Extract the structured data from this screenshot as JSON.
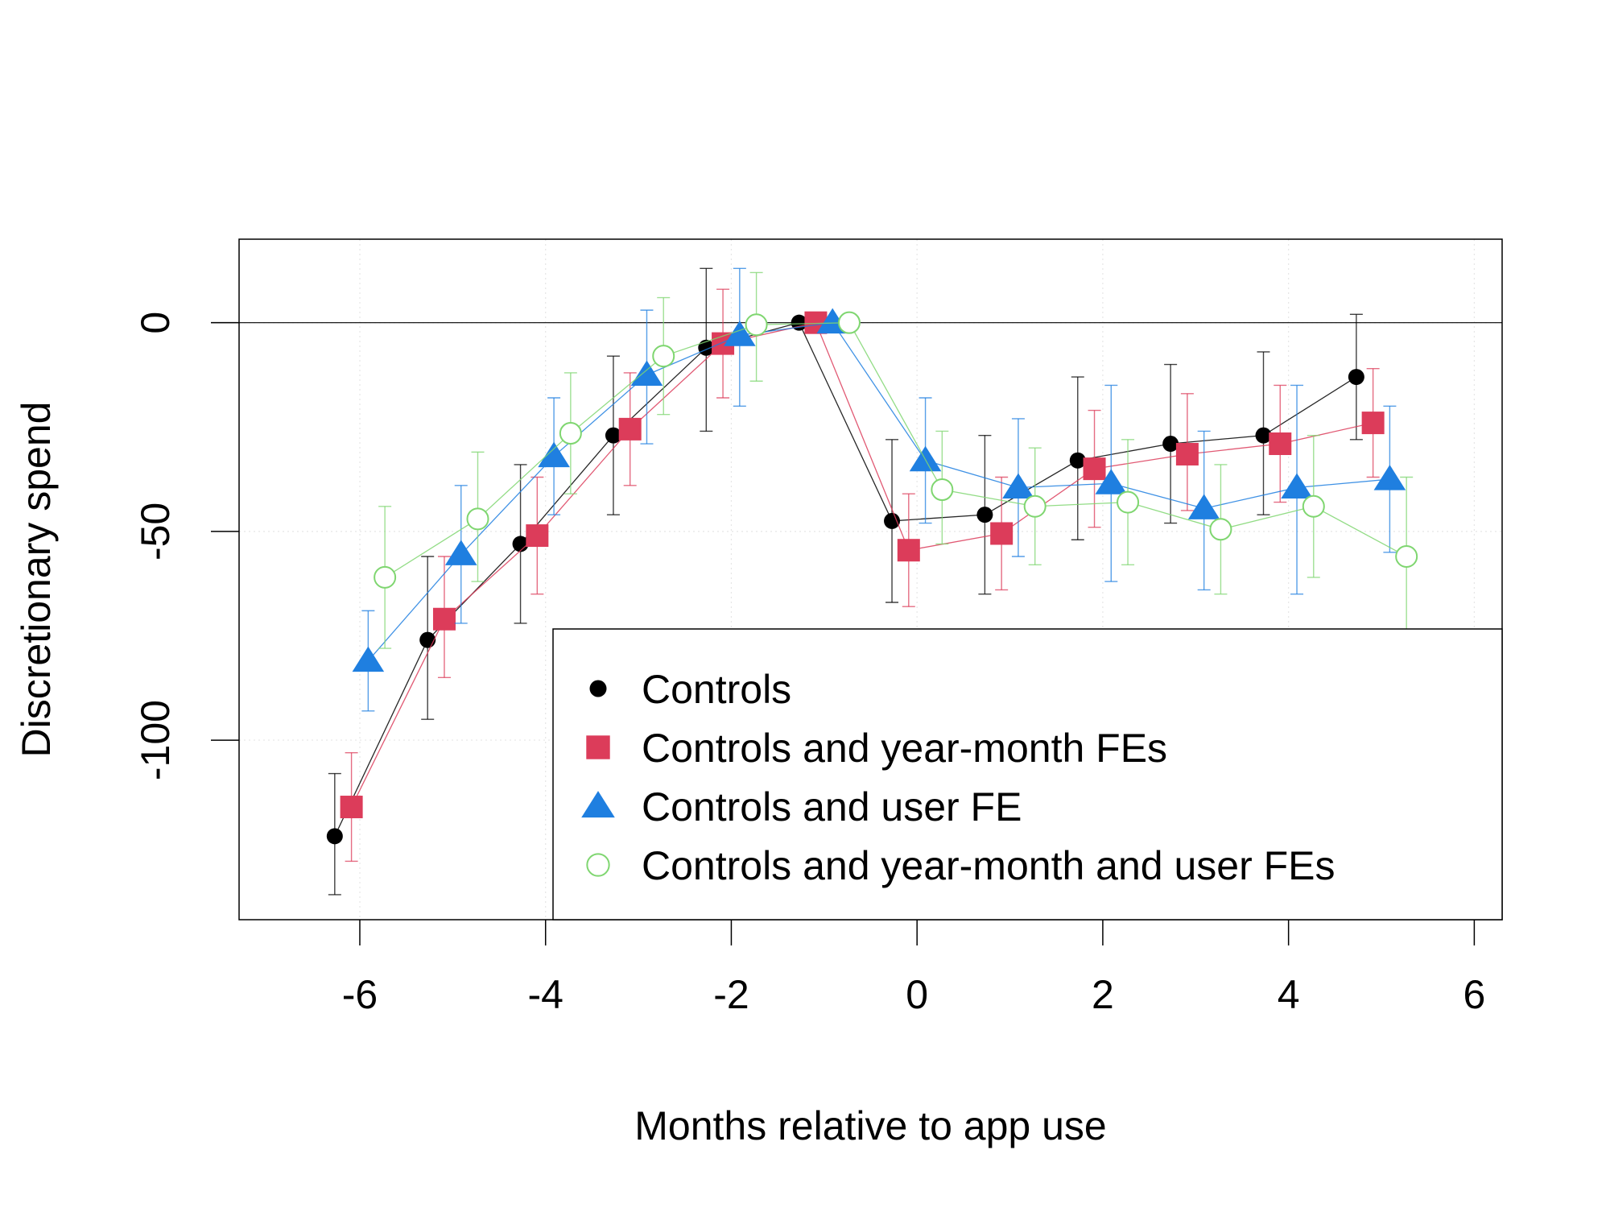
{
  "chart_data": {
    "type": "line",
    "title": "",
    "xlabel": "Months relative to app use",
    "ylabel": "Discretionary spend",
    "xlim": [
      -7.3,
      6.3
    ],
    "ylim": [
      -143,
      20
    ],
    "xticks": [
      -6,
      -4,
      -2,
      0,
      2,
      4,
      6
    ],
    "yticks": [
      0,
      -50,
      -100
    ],
    "xtick_labels": [
      "-6",
      "-4",
      "-2",
      "0",
      "2",
      "4",
      "6"
    ],
    "ytick_labels": [
      "0",
      "-50",
      "-100"
    ],
    "grid": true,
    "reference_line_y": 0,
    "legend_position": "bottom-right",
    "series": [
      {
        "name": "Controls",
        "color": "#000000",
        "marker": "filled-circle",
        "x": [
          -6.27,
          -5.27,
          -4.27,
          -3.27,
          -2.27,
          -1.27,
          -0.27,
          0.73,
          1.73,
          2.73,
          3.73,
          4.73
        ],
        "y": [
          -123,
          -76,
          -53,
          -27,
          -6,
          0,
          -47.5,
          -46,
          -33,
          -29,
          -27,
          -13
        ],
        "lower": [
          -137,
          -95,
          -72,
          -46,
          -26,
          0,
          -67,
          -65,
          -52,
          -48,
          -46,
          -28
        ],
        "upper": [
          -108,
          -56,
          -34,
          -8,
          13,
          0,
          -28,
          -27,
          -13,
          -10,
          -7,
          2
        ]
      },
      {
        "name": "Controls and year-month FEs",
        "color": "#dc3c5a",
        "marker": "filled-square",
        "x": [
          -6.09,
          -5.09,
          -4.09,
          -3.09,
          -2.09,
          -1.09,
          -0.09,
          0.91,
          1.91,
          2.91,
          3.91,
          4.91
        ],
        "y": [
          -116,
          -71,
          -51,
          -25.5,
          -5,
          0,
          -54.5,
          -50.5,
          -35,
          -31.5,
          -29,
          -24
        ],
        "lower": [
          -129,
          -85,
          -65,
          -39,
          -18,
          0,
          -68,
          -64,
          -49,
          -45,
          -43,
          -37
        ],
        "upper": [
          -103,
          -56,
          -37,
          -12,
          8,
          0,
          -41,
          -37,
          -21,
          -17,
          -15,
          -11
        ]
      },
      {
        "name": "Controls and user FE",
        "color": "#1f7fe0",
        "marker": "filled-triangle",
        "x": [
          -5.91,
          -4.91,
          -3.91,
          -2.91,
          -1.91,
          -0.91,
          0.09,
          1.09,
          2.09,
          3.09,
          4.09,
          5.09
        ],
        "y": [
          -81,
          -55.5,
          -32,
          -12.5,
          -3,
          0,
          -33,
          -39.5,
          -38.5,
          -44.5,
          -39.5,
          -37.5
        ],
        "lower": [
          -93,
          -72,
          -46,
          -29,
          -20,
          0,
          -48,
          -56,
          -62,
          -64,
          -65,
          -55
        ],
        "upper": [
          -69,
          -39,
          -18,
          3,
          13,
          0,
          -18,
          -23,
          -15,
          -26,
          -15,
          -20
        ]
      },
      {
        "name": "Controls and year-month and user FEs",
        "color": "#7fd670",
        "marker": "open-circle",
        "x": [
          -5.73,
          -4.73,
          -3.73,
          -2.73,
          -1.73,
          -0.73,
          0.27,
          1.27,
          2.27,
          3.27,
          4.27,
          5.27
        ],
        "y": [
          -61,
          -47,
          -26.5,
          -8,
          -0.5,
          0,
          -40,
          -44,
          -43,
          -49.5,
          -44,
          -56
        ],
        "lower": [
          -78,
          -62,
          -41,
          -22,
          -14,
          0,
          -53,
          -58,
          -58,
          -65,
          -61,
          -75
        ],
        "upper": [
          -44,
          -31,
          -12,
          6,
          12,
          0,
          -26,
          -30,
          -28,
          -34,
          -27,
          -37
        ]
      }
    ]
  }
}
